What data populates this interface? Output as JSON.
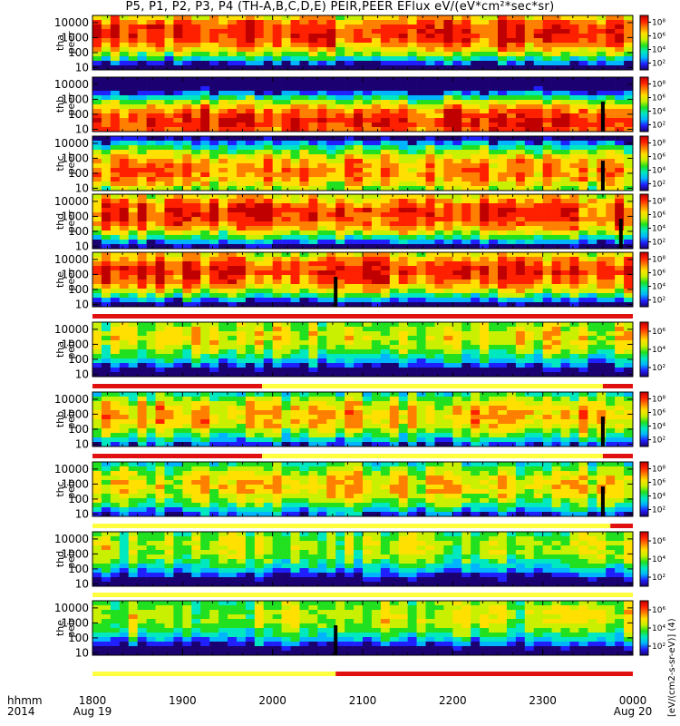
{
  "title": "P5, P1, P2, P3, P4 (TH-A,B,C,D,E) PEIR,PEER EFlux eV/(eV*cm²*sec*sr)",
  "footer": {
    "hhmm": "hhmm",
    "year": "2014"
  },
  "colorbar_unit": "[eV/(cm2-s-sr-eV)] (4)",
  "colors": {
    "scale": [
      "#1a0070",
      "#2020ff",
      "#00b4ff",
      "#00e8c0",
      "#20e020",
      "#c8f000",
      "#ffe000",
      "#ff8000",
      "#ff2000",
      "#c00000"
    ],
    "flag_red": "#e01010",
    "flag_yellow": "#ffff40",
    "fill_data": "#000000"
  },
  "chart_data": {
    "type": "heatmap",
    "x_axis": {
      "range": [
        "2014-08-19 18:00",
        "2014-08-20 00:00"
      ],
      "ticks": [
        "1800",
        "1900",
        "2000",
        "2100",
        "2200",
        "2300",
        "0000"
      ],
      "tick_dates": {
        "0": "Aug 19",
        "6": "Aug 20"
      }
    },
    "panels": [
      {
        "ylabel": [
          "tha",
          "peer"
        ],
        "yscale": "log",
        "yticks": [
          "10",
          "100",
          "1000",
          "10000"
        ],
        "ylim": [
          7,
          30000
        ],
        "cticks": [
          "10⁸",
          "10⁶",
          "10⁴",
          "10²"
        ],
        "clim_exp": [
          1,
          9
        ]
      },
      {
        "ylabel": [
          "thb",
          "peer"
        ],
        "yscale": "log",
        "yticks": [
          "10",
          "100",
          "1000",
          "10000"
        ],
        "ylim": [
          7,
          30000
        ],
        "cticks": [
          "10⁸",
          "10⁶",
          "10⁴",
          "10²"
        ],
        "clim_exp": [
          1,
          9
        ]
      },
      {
        "ylabel": [
          "thc",
          "peer"
        ],
        "yscale": "log",
        "yticks": [
          "10",
          "100",
          "1000",
          "10000"
        ],
        "ylim": [
          7,
          30000
        ],
        "cticks": [
          "10⁸",
          "10⁶",
          "10⁴",
          "10²"
        ],
        "clim_exp": [
          1,
          9
        ]
      },
      {
        "ylabel": [
          "thd",
          "peer"
        ],
        "yscale": "log",
        "yticks": [
          "10",
          "100",
          "1000",
          "10000"
        ],
        "ylim": [
          7,
          30000
        ],
        "cticks": [
          "10⁸",
          "10⁶",
          "10⁴",
          "10²"
        ],
        "clim_exp": [
          1,
          9
        ]
      },
      {
        "ylabel": [
          "the",
          "peer"
        ],
        "yscale": "log",
        "yticks": [
          "10",
          "100",
          "1000",
          "10000"
        ],
        "ylim": [
          7,
          30000
        ],
        "cticks": [
          "10⁸",
          "10⁶",
          "10⁴",
          "10²"
        ],
        "clim_exp": [
          1,
          9
        ]
      },
      {
        "ylabel": [
          "tha",
          "peir"
        ],
        "yscale": "log",
        "yticks": [
          "10",
          "100",
          "1000",
          "10000"
        ],
        "ylim": [
          7,
          30000
        ],
        "cticks": [
          "10⁶",
          "10⁴",
          "10²"
        ],
        "clim_exp": [
          1,
          7
        ]
      },
      {
        "ylabel": [
          "thb",
          "peir"
        ],
        "yscale": "log",
        "yticks": [
          "10",
          "100",
          "1000",
          "10000"
        ],
        "ylim": [
          7,
          30000
        ],
        "cticks": [
          "10⁸",
          "10⁶",
          "10⁴",
          "10²"
        ],
        "clim_exp": [
          1,
          9
        ]
      },
      {
        "ylabel": [
          "thc",
          "peir"
        ],
        "yscale": "log",
        "yticks": [
          "10",
          "100",
          "1000",
          "10000"
        ],
        "ylim": [
          7,
          30000
        ],
        "cticks": [
          "10⁸",
          "10⁶",
          "10⁴",
          "10²"
        ],
        "clim_exp": [
          1,
          9
        ]
      },
      {
        "ylabel": [
          "thd",
          "peir"
        ],
        "yscale": "log",
        "yticks": [
          "10",
          "100",
          "1000",
          "10000"
        ],
        "ylim": [
          7,
          30000
        ],
        "cticks": [
          "10⁶",
          "10⁴",
          "10²"
        ],
        "clim_exp": [
          1,
          7
        ]
      },
      {
        "ylabel": [
          "the",
          "peir"
        ],
        "yscale": "log",
        "yticks": [
          "10",
          "100",
          "1000",
          "10000"
        ],
        "ylim": [
          7,
          30000
        ],
        "cticks": [
          "10⁶",
          "10⁴",
          "10²"
        ],
        "clim_exp": [
          1,
          7
        ]
      }
    ],
    "spectrogram_profiles": [
      {
        "peak_energy": 2000,
        "level": 0.85,
        "gap_times": [],
        "dropout_times": []
      },
      {
        "peak_energy": 30,
        "level": 0.88,
        "gap_times": [
          "23:40"
        ],
        "dropout_times": []
      },
      {
        "peak_energy": 150,
        "level": 0.75,
        "gap_times": [
          "23:40"
        ],
        "dropout_times": []
      },
      {
        "peak_energy": 1500,
        "level": 0.85,
        "gap_times": [
          "23:52"
        ],
        "dropout_times": []
      },
      {
        "peak_energy": 1500,
        "level": 0.85,
        "gap_times": [
          "20:42"
        ],
        "dropout_times": []
      },
      {
        "peak_energy": 3000,
        "level": 0.6,
        "gap_times": [],
        "dropout_times": []
      },
      {
        "peak_energy": 800,
        "level": 0.7,
        "gap_times": [
          "23:40"
        ],
        "dropout_times": []
      },
      {
        "peak_energy": 800,
        "level": 0.65,
        "gap_times": [
          "23:40"
        ],
        "dropout_times": []
      },
      {
        "peak_energy": 3000,
        "level": 0.55,
        "gap_times": [],
        "dropout_times": []
      },
      {
        "peak_energy": 3000,
        "level": 0.55,
        "gap_times": [
          "20:42"
        ],
        "dropout_times": []
      }
    ],
    "mode_bars": [
      {
        "after_panel": 5,
        "segments": [
          [
            "18:00",
            "00:00",
            "flag_red"
          ]
        ]
      },
      {
        "after_panel": 6,
        "segments": [
          [
            "18:00",
            "19:53",
            "flag_red"
          ],
          [
            "19:53",
            "23:40",
            "flag_yellow"
          ],
          [
            "23:40",
            "00:00",
            "flag_red"
          ]
        ]
      },
      {
        "after_panel": 7,
        "segments": [
          [
            "18:00",
            "19:53",
            "flag_red"
          ],
          [
            "19:53",
            "23:40",
            "flag_yellow"
          ],
          [
            "23:40",
            "00:00",
            "flag_red"
          ]
        ]
      },
      {
        "after_panel": 8,
        "segments": [
          [
            "18:00",
            "23:45",
            "flag_yellow"
          ],
          [
            "23:45",
            "00:00",
            "flag_red"
          ]
        ]
      },
      {
        "after_panel": 9,
        "segments": [
          [
            "18:00",
            "00:00",
            "flag_yellow"
          ]
        ]
      },
      {
        "after_panel": 10,
        "segments": [
          [
            "18:00",
            "20:42",
            "flag_yellow"
          ],
          [
            "20:42",
            "00:00",
            "flag_red"
          ]
        ]
      }
    ]
  }
}
